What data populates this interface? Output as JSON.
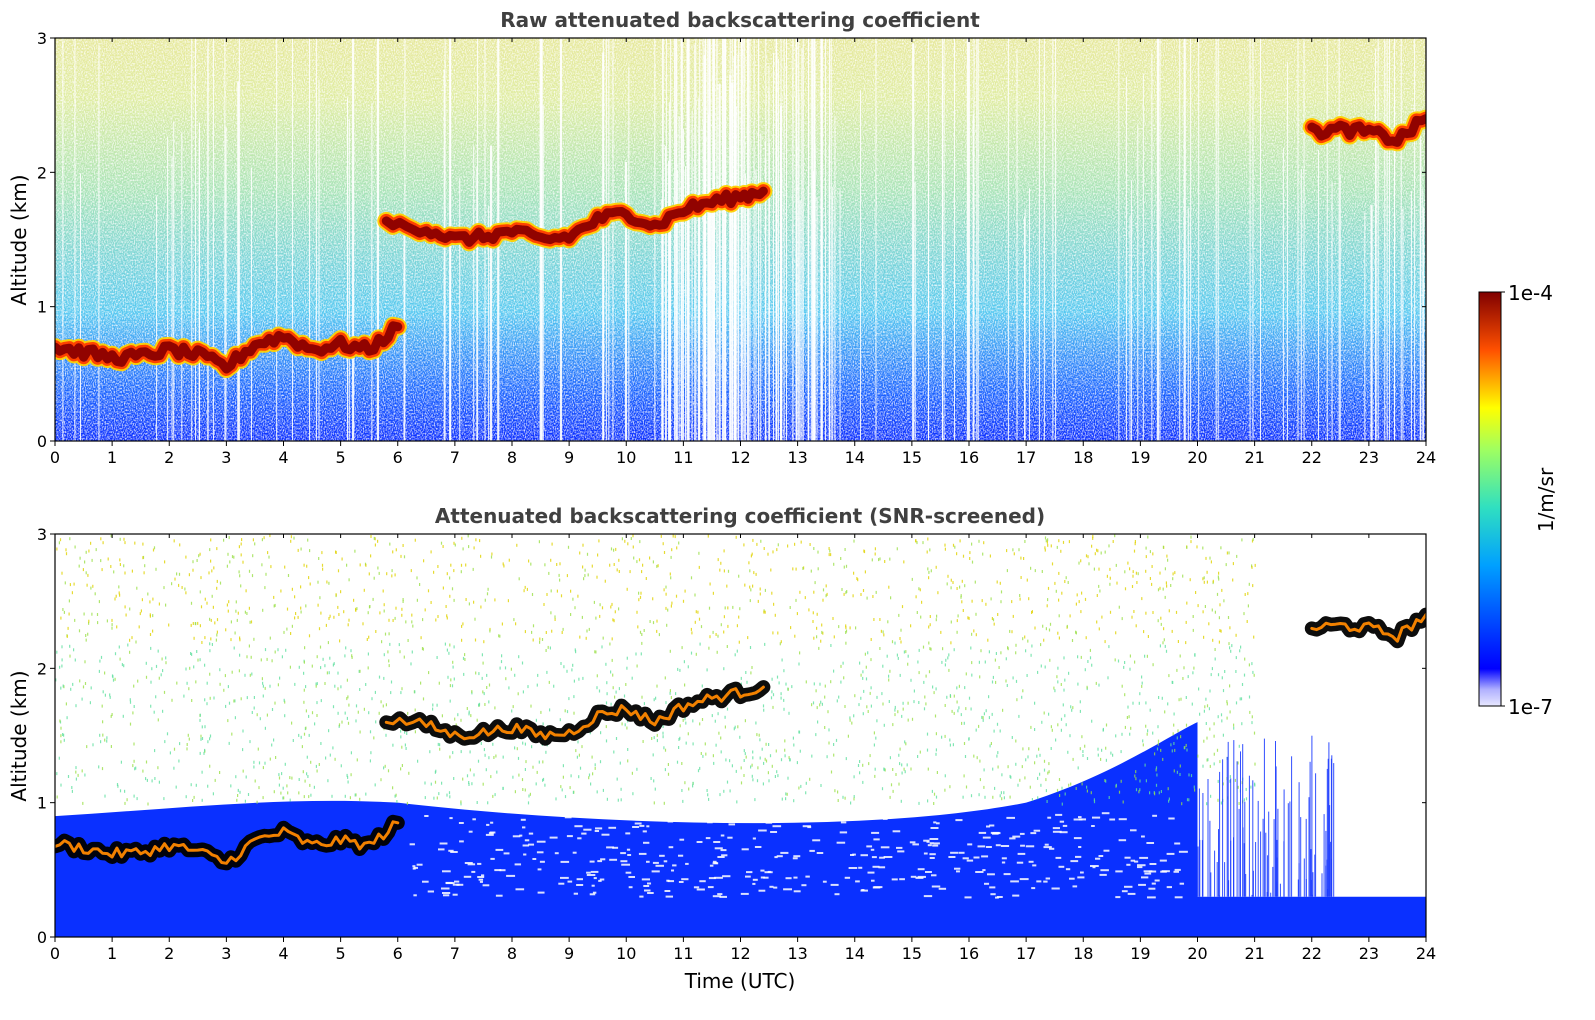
{
  "chart_data": [
    {
      "type": "heatmap",
      "title": "Raw attenuated backscattering coefficient",
      "xlabel": "",
      "ylabel": "Altitude (km)",
      "xlim": [
        0,
        24
      ],
      "ylim": [
        0,
        3
      ],
      "xticks": [
        "0",
        "1",
        "2",
        "3",
        "4",
        "5",
        "6",
        "7",
        "8",
        "9",
        "10",
        "11",
        "12",
        "13",
        "14",
        "15",
        "16",
        "17",
        "18",
        "19",
        "20",
        "21",
        "22",
        "23",
        "24"
      ],
      "yticks": [
        "0",
        "1",
        "2",
        "3"
      ],
      "colormap": "jet",
      "features": {
        "boundary_layer_cloud": {
          "x": [
            0,
            0.5,
            1,
            1.5,
            2,
            2.5,
            3,
            3.5,
            4,
            4.5,
            5,
            5.5,
            6
          ],
          "y": [
            0.7,
            0.66,
            0.62,
            0.63,
            0.68,
            0.64,
            0.55,
            0.72,
            0.78,
            0.68,
            0.72,
            0.68,
            0.85
          ]
        },
        "mid_level_cloud": {
          "x": [
            5.8,
            6.5,
            7,
            7.5,
            8,
            8.5,
            9,
            9.5,
            10,
            10.5,
            11,
            11.5,
            12,
            12.4
          ],
          "y": [
            1.62,
            1.58,
            1.5,
            1.52,
            1.56,
            1.5,
            1.52,
            1.65,
            1.7,
            1.6,
            1.72,
            1.78,
            1.82,
            1.86
          ]
        },
        "upper_cloud": {
          "x": [
            22,
            22.5,
            23,
            23.5,
            24
          ],
          "y": [
            2.3,
            2.32,
            2.3,
            2.24,
            2.4
          ]
        }
      }
    },
    {
      "type": "heatmap",
      "title": "Attenuated backscattering coefficient (SNR-screened)",
      "xlabel": "Time (UTC)",
      "ylabel": "Altitude (km)",
      "xlim": [
        0,
        24
      ],
      "ylim": [
        0,
        3
      ],
      "xticks": [
        "0",
        "1",
        "2",
        "3",
        "4",
        "5",
        "6",
        "7",
        "8",
        "9",
        "10",
        "11",
        "12",
        "13",
        "14",
        "15",
        "16",
        "17",
        "18",
        "19",
        "20",
        "21",
        "22",
        "23",
        "24"
      ],
      "yticks": [
        "0",
        "1",
        "2",
        "3"
      ],
      "colormap": "jet",
      "masked_region": {
        "x": [
          20,
          24
        ],
        "y_above": 0.3
      }
    }
  ],
  "colorbar": {
    "label": "1/m/sr",
    "max_label": "1e-4",
    "min_label": "1e-7",
    "scale": "log",
    "range": [
      1e-07,
      0.0001
    ]
  },
  "colors": {
    "jet_low": "#0000ff",
    "jet_high": "#800000",
    "cloud_screened": "#000000"
  }
}
